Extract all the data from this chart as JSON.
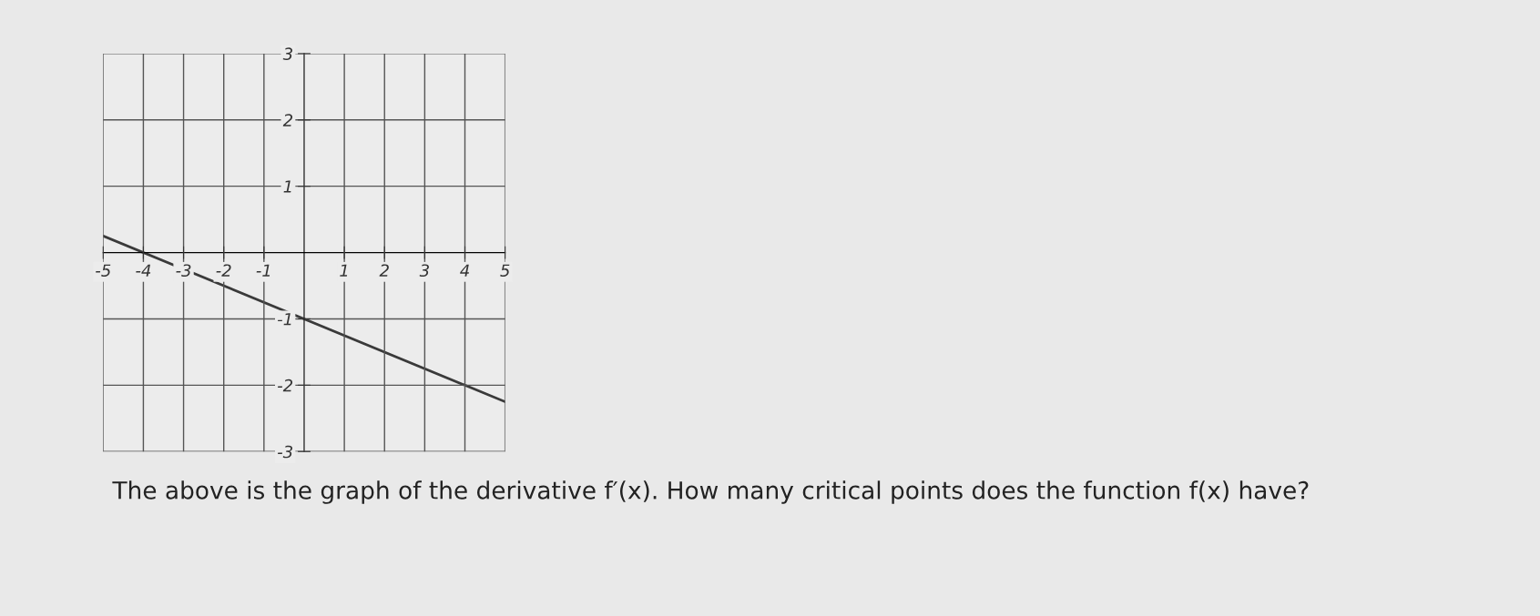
{
  "chart_data": {
    "type": "line",
    "x": [
      -5,
      5
    ],
    "series": [
      {
        "color": "#3a3a3a",
        "values": [
          0.25,
          -2.25
        ]
      }
    ],
    "xlim": [
      -5,
      5
    ],
    "ylim": [
      -3,
      3
    ],
    "xticks": [
      -5,
      -4,
      -3,
      -2,
      -1,
      1,
      2,
      3,
      4,
      5
    ],
    "yticks": [
      -3,
      -2,
      -1,
      1,
      2,
      3
    ],
    "grid": true,
    "annotations": [
      "The above is the graph of the derivative f′(x). How many critical points does the function f(x) have?"
    ]
  }
}
